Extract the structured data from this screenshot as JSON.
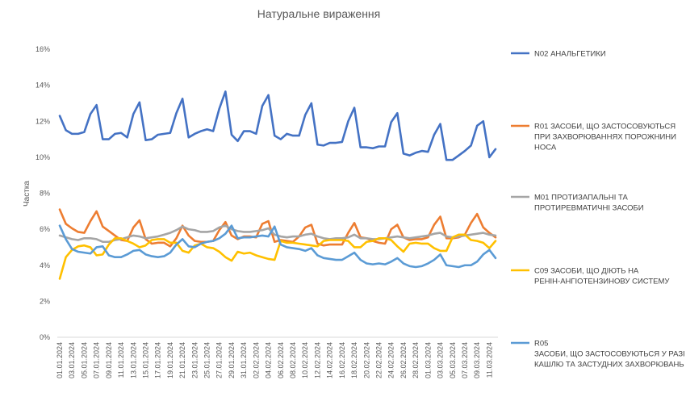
{
  "chart_data": {
    "type": "line",
    "title": "Натуральне вираження",
    "xlabel": "",
    "ylabel": "Частка",
    "ylim": [
      0,
      16
    ],
    "yticks": [
      "0%",
      "2%",
      "4%",
      "6%",
      "8%",
      "10%",
      "12%",
      "14%",
      "16%"
    ],
    "grid": false,
    "legend_position": "right",
    "x": [
      "01.01.2024",
      "02.01.2024",
      "03.01.2024",
      "04.01.2024",
      "05.01.2024",
      "06.01.2024",
      "07.01.2024",
      "08.01.2024",
      "09.01.2024",
      "10.01.2024",
      "11.01.2024",
      "12.01.2024",
      "13.01.2024",
      "14.01.2024",
      "15.01.2024",
      "16.01.2024",
      "17.01.2024",
      "18.01.2024",
      "19.01.2024",
      "20.01.2024",
      "21.01.2024",
      "22.01.2024",
      "23.01.2024",
      "24.01.2024",
      "25.01.2024",
      "26.01.2024",
      "27.01.2024",
      "28.01.2024",
      "29.01.2024",
      "30.01.2024",
      "31.01.2024",
      "01.02.2024",
      "02.02.2024",
      "03.02.2024",
      "04.02.2024",
      "05.02.2024",
      "06.02.2024",
      "07.02.2024",
      "08.02.2024",
      "09.02.2024",
      "10.02.2024",
      "11.02.2024",
      "12.02.2024",
      "13.02.2024",
      "14.02.2024",
      "15.02.2024",
      "16.02.2024",
      "17.02.2024",
      "18.02.2024",
      "19.02.2024",
      "20.02.2024",
      "21.02.2024",
      "22.02.2024",
      "23.02.2024",
      "24.02.2024",
      "25.02.2024",
      "26.02.2024",
      "27.02.2024",
      "28.02.2024",
      "29.02.2024",
      "01.03.2024",
      "02.03.2024",
      "03.03.2024",
      "04.03.2024",
      "05.03.2024",
      "06.03.2024",
      "07.03.2024",
      "08.03.2024",
      "09.03.2024",
      "10.03.2024",
      "11.03.2024",
      "12.03.2024"
    ],
    "x_tick_labels": [
      "01.01.2024",
      "03.01.2024",
      "05.01.2024",
      "07.01.2024",
      "09.01.2024",
      "11.01.2024",
      "13.01.2024",
      "15.01.2024",
      "17.01.2024",
      "19.01.2024",
      "21.01.2024",
      "23.01.2024",
      "25.01.2024",
      "27.01.2024",
      "29.01.2024",
      "31.01.2024",
      "02.02.2024",
      "04.02.2024",
      "06.02.2024",
      "08.02.2024",
      "10.02.2024",
      "12.02.2024",
      "14.02.2024",
      "16.02.2024",
      "18.02.2024",
      "20.02.2024",
      "22.02.2024",
      "24.02.2024",
      "26.02.2024",
      "28.02.2024",
      "01.03.2024",
      "03.03.2024",
      "05.03.2024",
      "07.03.2024",
      "09.03.2024",
      "11.03.2024"
    ],
    "series": [
      {
        "name": "N02 АНАЛЬГЕТИКИ",
        "color": "#4472C4",
        "values": [
          12.3,
          11.5,
          11.3,
          11.3,
          11.4,
          12.4,
          12.9,
          11.0,
          11.0,
          11.3,
          11.35,
          11.1,
          12.4,
          13.05,
          10.95,
          11.0,
          11.25,
          11.3,
          11.35,
          12.45,
          13.25,
          11.1,
          11.3,
          11.45,
          11.55,
          11.45,
          12.7,
          13.65,
          11.25,
          10.9,
          11.45,
          11.45,
          11.3,
          12.85,
          13.45,
          11.2,
          11.0,
          11.3,
          11.2,
          11.2,
          12.35,
          13.0,
          10.7,
          10.65,
          10.8,
          10.8,
          10.85,
          12.0,
          12.75,
          10.55,
          10.55,
          10.5,
          10.6,
          10.6,
          11.95,
          12.45,
          10.2,
          10.1,
          10.25,
          10.35,
          10.3,
          11.25,
          11.85,
          9.85,
          9.85,
          10.1,
          10.35,
          10.65,
          11.75,
          12.0,
          10.0,
          10.45
        ]
      },
      {
        "name": "R01 ЗАСОБИ, ЩО ЗАСТОСОВУЮТЬСЯ ПРИ ЗАХВОРЮВАННЯХ ПОРОЖНИНИ НОСА",
        "color": "#ED7D31",
        "values": [
          7.1,
          6.3,
          6.05,
          5.85,
          5.8,
          6.45,
          7.0,
          6.15,
          5.9,
          5.65,
          5.4,
          5.35,
          6.1,
          6.5,
          5.45,
          5.2,
          5.25,
          5.25,
          5.05,
          5.5,
          6.2,
          5.65,
          5.35,
          5.3,
          5.3,
          5.35,
          5.95,
          6.4,
          5.65,
          5.45,
          5.6,
          5.6,
          5.55,
          6.3,
          6.45,
          5.3,
          5.4,
          5.35,
          5.3,
          5.6,
          6.1,
          6.25,
          5.2,
          5.1,
          5.15,
          5.15,
          5.15,
          5.8,
          6.35,
          5.55,
          5.5,
          5.35,
          5.25,
          5.2,
          6.0,
          6.25,
          5.55,
          5.4,
          5.45,
          5.45,
          5.55,
          6.25,
          6.7,
          5.5,
          5.5,
          5.55,
          5.7,
          6.35,
          6.85,
          6.1,
          5.8,
          5.55
        ]
      },
      {
        "name": "M01 ПРОТИЗАПАЛЬНІ ТА ПРОТИРЕВМАТИЧНІ ЗАСОБИ",
        "color": "#A5A5A5",
        "values": [
          5.65,
          5.55,
          5.45,
          5.4,
          5.5,
          5.5,
          5.45,
          5.3,
          5.3,
          5.4,
          5.45,
          5.55,
          5.65,
          5.6,
          5.5,
          5.55,
          5.6,
          5.7,
          5.8,
          5.95,
          6.15,
          6.0,
          5.95,
          5.85,
          5.85,
          5.9,
          6.1,
          6.2,
          6.0,
          5.9,
          5.85,
          5.85,
          5.9,
          5.95,
          6.05,
          5.7,
          5.6,
          5.55,
          5.6,
          5.6,
          5.7,
          5.75,
          5.6,
          5.5,
          5.45,
          5.5,
          5.5,
          5.55,
          5.7,
          5.5,
          5.5,
          5.45,
          5.45,
          5.5,
          5.55,
          5.6,
          5.55,
          5.5,
          5.55,
          5.6,
          5.65,
          5.75,
          5.8,
          5.6,
          5.55,
          5.6,
          5.65,
          5.7,
          5.75,
          5.8,
          5.7,
          5.65
        ]
      },
      {
        "name": "C09 ЗАСОБИ, ЩО ДІЮТЬ НА РЕНІН-АНГІОТЕНЗИНОВУ СИСТЕМУ",
        "color": "#FFC000",
        "values": [
          3.25,
          4.45,
          4.85,
          5.05,
          5.1,
          5.0,
          4.55,
          4.6,
          5.15,
          5.5,
          5.5,
          5.35,
          5.2,
          5.0,
          5.1,
          5.4,
          5.45,
          5.45,
          5.25,
          5.25,
          4.8,
          4.7,
          5.1,
          5.2,
          5.0,
          4.95,
          4.75,
          4.45,
          4.25,
          4.75,
          4.65,
          4.7,
          4.55,
          4.45,
          4.35,
          4.3,
          5.35,
          5.25,
          5.25,
          5.2,
          5.15,
          5.1,
          5.05,
          5.35,
          5.4,
          5.4,
          5.4,
          5.35,
          5.0,
          5.0,
          5.3,
          5.35,
          5.5,
          5.5,
          5.4,
          5.05,
          4.75,
          5.2,
          5.25,
          5.2,
          5.2,
          4.95,
          4.8,
          4.8,
          5.55,
          5.7,
          5.7,
          5.4,
          5.35,
          5.25,
          4.95,
          5.35
        ]
      },
      {
        "name": "R05 ЗАСОБИ, ЩО ЗАСТОСОВУЮТЬСЯ У РАЗІ КАШЛЮ ТА ЗАСТУДНИХ ЗАХВОРЮВАНЬ",
        "legend_lines": [
          "R05",
          "ЗАСОБИ, ЩО ЗАСТОСОВУЮТЬСЯ У РАЗІ",
          "КАШЛЮ ТА ЗАСТУДНИХ ЗАХВОРЮВАНЬ"
        ],
        "color": "#5B9BD5",
        "values": [
          6.2,
          5.45,
          4.9,
          4.75,
          4.7,
          4.65,
          5.0,
          5.05,
          4.55,
          4.45,
          4.45,
          4.6,
          4.8,
          4.85,
          4.6,
          4.5,
          4.45,
          4.5,
          4.7,
          5.15,
          5.45,
          5.05,
          5.0,
          5.2,
          5.3,
          5.35,
          5.5,
          5.75,
          6.2,
          5.5,
          5.55,
          5.55,
          5.6,
          5.65,
          5.6,
          6.15,
          5.15,
          5.0,
          4.95,
          4.9,
          4.8,
          4.95,
          4.55,
          4.4,
          4.35,
          4.3,
          4.3,
          4.5,
          4.7,
          4.3,
          4.1,
          4.05,
          4.1,
          4.05,
          4.2,
          4.4,
          4.1,
          3.95,
          3.9,
          3.95,
          4.1,
          4.3,
          4.6,
          4.0,
          3.95,
          3.9,
          4.0,
          4.0,
          4.2,
          4.6,
          4.85,
          4.4
        ]
      }
    ]
  }
}
